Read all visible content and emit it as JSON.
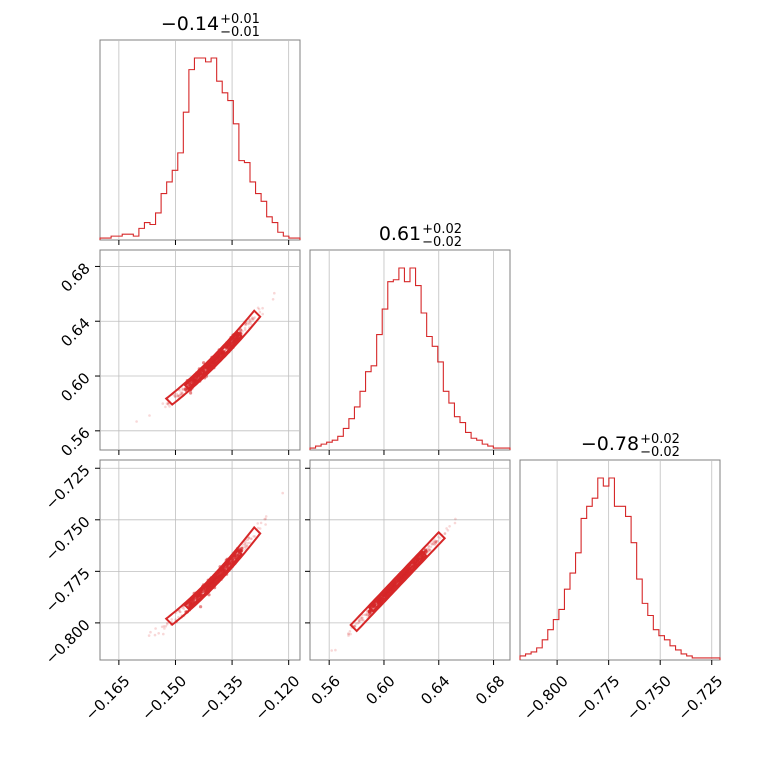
{
  "colors": {
    "accent": "#d62728",
    "grid": "#bfbfbf",
    "frame": "#808080"
  },
  "chart_data": {
    "type": "corner",
    "parameters": [
      {
        "median": -0.14,
        "plus": "+0.01",
        "minus": "−0.01",
        "median_label": "−0.14"
      },
      {
        "median": 0.61,
        "plus": "+0.02",
        "minus": "−0.02",
        "median_label": "0.61"
      },
      {
        "median": -0.78,
        "plus": "+0.02",
        "minus": "−0.02",
        "median_label": "−0.78"
      }
    ],
    "ranges": [
      [
        -0.17,
        -0.117
      ],
      [
        0.546,
        0.692
      ],
      [
        -0.818,
        -0.721
      ]
    ],
    "ticks": [
      {
        "values": [
          -0.165,
          -0.15,
          -0.135,
          -0.12
        ],
        "labels": [
          "−0.165",
          "−0.150",
          "−0.135",
          "−0.120"
        ]
      },
      {
        "values": [
          0.56,
          0.6,
          0.64,
          0.68
        ],
        "labels": [
          "0.56",
          "0.60",
          "0.64",
          "0.68"
        ]
      },
      {
        "values": [
          -0.8,
          -0.775,
          -0.75,
          -0.725
        ],
        "labels": [
          "−0.800",
          "−0.775",
          "−0.750",
          "−0.725"
        ]
      }
    ],
    "histograms": [
      {
        "counts": [
          1,
          1,
          2,
          2,
          3,
          3,
          2,
          6,
          9,
          8,
          14,
          24,
          30,
          36,
          45,
          66,
          88,
          94,
          94,
          92,
          94,
          82,
          76,
          72,
          60,
          41,
          40,
          30,
          24,
          20,
          12,
          9,
          4,
          2,
          1,
          1
        ]
      },
      {
        "counts": [
          1,
          2,
          3,
          4,
          5,
          7,
          11,
          16,
          22,
          30,
          40,
          43,
          59,
          72,
          86,
          87,
          93,
          86,
          93,
          84,
          70,
          58,
          53,
          45,
          30,
          24,
          17,
          14,
          9,
          6,
          5,
          3,
          2,
          1,
          1,
          1
        ]
      },
      {
        "counts": [
          2,
          3,
          4,
          6,
          10,
          15,
          20,
          25,
          35,
          43,
          53,
          70,
          76,
          80,
          90,
          86,
          90,
          76,
          76,
          71,
          58,
          40,
          28,
          22,
          15,
          12,
          10,
          7,
          5,
          3,
          2,
          1,
          1,
          1,
          1,
          1
        ]
      }
    ],
    "scatter": [
      {
        "pair": [
          0,
          1
        ],
        "relation": {
          "x0": -0.14,
          "y0": 0.61,
          "slope": 2.75,
          "curve": 25,
          "noise": 0.002
        }
      },
      {
        "pair": [
          0,
          2
        ],
        "relation": {
          "x0": -0.14,
          "y0": -0.78,
          "slope": 1.9,
          "curve": 20,
          "noise": 0.0015
        }
      },
      {
        "pair": [
          1,
          2
        ],
        "relation": {
          "x0": 0.61,
          "y0": -0.78,
          "slope": 0.7,
          "curve": 0,
          "noise": 0.0008
        }
      }
    ],
    "grid": true
  }
}
